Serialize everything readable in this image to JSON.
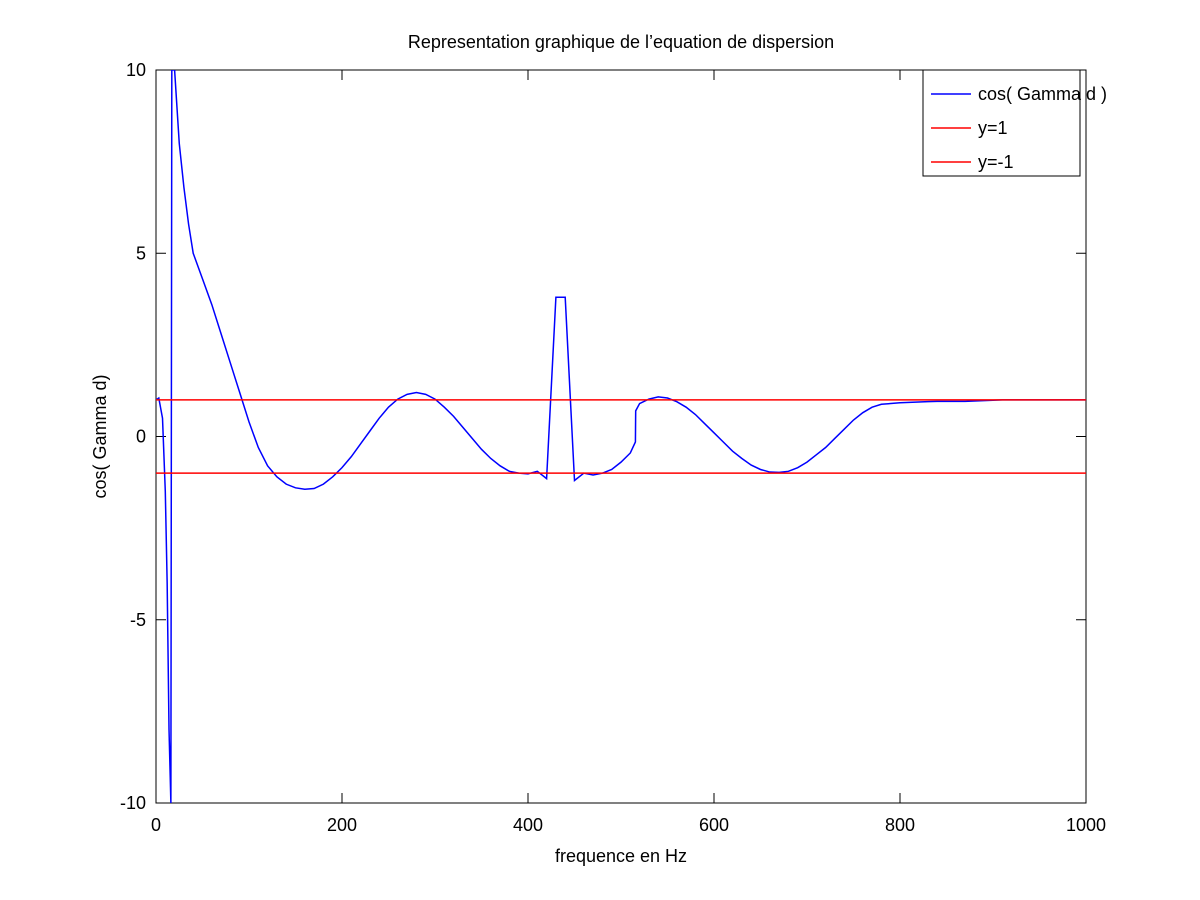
{
  "chart_data": {
    "type": "line",
    "title": "Representation graphique de l’equation de dispersion",
    "xlabel": "frequence en Hz",
    "ylabel": "cos( Gamma d)",
    "xlim": [
      0,
      1000
    ],
    "ylim": [
      -10,
      10
    ],
    "xticks": [
      0,
      200,
      400,
      600,
      800,
      1000
    ],
    "yticks": [
      -10,
      -5,
      0,
      5,
      10
    ],
    "legend_position": "top-right",
    "grid": false,
    "series": [
      {
        "name": "cos( Gamma d )",
        "color": "#0000ff",
        "x": [
          0,
          3,
          7,
          10,
          12,
          14,
          16,
          17,
          17.5,
          20,
          22,
          25,
          30,
          35,
          40,
          50,
          60,
          70,
          80,
          90,
          100,
          110,
          120,
          130,
          140,
          150,
          160,
          170,
          180,
          190,
          200,
          210,
          220,
          230,
          240,
          250,
          260,
          270,
          280,
          290,
          300,
          310,
          320,
          330,
          340,
          350,
          360,
          370,
          380,
          390,
          400,
          410,
          420,
          430,
          440,
          450,
          460,
          470,
          480,
          490,
          500,
          510,
          515.5,
          515.6,
          515.7,
          515.8,
          520,
          530,
          540,
          550,
          560,
          570,
          580,
          590,
          600,
          610,
          620,
          630,
          640,
          650,
          660,
          670,
          680,
          690,
          700,
          710,
          720,
          730,
          740,
          750,
          760,
          770,
          780,
          790,
          800,
          810,
          820,
          830,
          840,
          850,
          860,
          870,
          880,
          890,
          900,
          910,
          920,
          930,
          940,
          950,
          960,
          970,
          980,
          990,
          1000
        ],
        "y": [
          1.0,
          1.05,
          0.5,
          -1.5,
          -4.0,
          -8.0,
          -10.0,
          10.0,
          10.0,
          10.0,
          9.2,
          8.0,
          6.8,
          5.8,
          5.0,
          4.3,
          3.6,
          2.8,
          2.0,
          1.2,
          0.4,
          -0.3,
          -0.8,
          -1.1,
          -1.3,
          -1.4,
          -1.44,
          -1.42,
          -1.3,
          -1.1,
          -0.85,
          -0.55,
          -0.2,
          0.15,
          0.5,
          0.8,
          1.02,
          1.15,
          1.2,
          1.15,
          1.02,
          0.8,
          0.55,
          0.25,
          -0.05,
          -0.35,
          -0.6,
          -0.8,
          -0.95,
          -1.0,
          -1.02,
          -0.95,
          -1.15,
          3.8,
          3.8,
          -1.2,
          -1.0,
          -1.05,
          -1.0,
          -0.9,
          -0.7,
          -0.45,
          -0.15,
          0.15,
          0.45,
          0.7,
          0.9,
          1.02,
          1.08,
          1.05,
          0.95,
          0.8,
          0.6,
          0.35,
          0.1,
          -0.15,
          -0.4,
          -0.6,
          -0.78,
          -0.9,
          -0.97,
          -0.98,
          -0.95,
          -0.85,
          -0.7,
          -0.5,
          -0.3,
          -0.05,
          0.2,
          0.45,
          0.65,
          0.8,
          0.88,
          0.9,
          0.92,
          0.93,
          0.94,
          0.95,
          0.96,
          0.96,
          0.96,
          0.96,
          0.97,
          0.98,
          0.99,
          1.0,
          1.0,
          1.0,
          1.0,
          1.0,
          1.0,
          1.0,
          1.0,
          1.0,
          1.0
        ]
      },
      {
        "name": "y=1",
        "color": "#ff0000",
        "x": [
          0,
          1000
        ],
        "y": [
          1,
          1
        ]
      },
      {
        "name": "y=-1",
        "color": "#ff0000",
        "x": [
          0,
          1000
        ],
        "y": [
          -1,
          -1
        ]
      }
    ]
  }
}
